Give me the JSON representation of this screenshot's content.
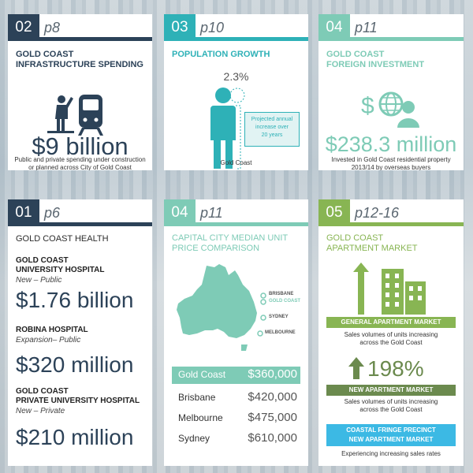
{
  "colors": {
    "navy": "#2c4258",
    "teal": "#2eb1b7",
    "mint": "#7ecbb6",
    "green": "#88b553",
    "cyan": "#3cb9e4",
    "olive": "#6b8a4e"
  },
  "infra": {
    "num": "02",
    "page": "p8",
    "title_line1": "GOLD COAST",
    "title_line2": "INFRASTRUCTURE SPENDING",
    "value": "$9 billion",
    "desc_line1": "Public and private spending under construction",
    "desc_line2": "or planned across City of Gold Coast",
    "icon": "person-train-icon"
  },
  "pop": {
    "num": "03",
    "page": "p10",
    "title": "POPULATION GROWTH",
    "percent": "2.3%",
    "note_line1": "Projected annual",
    "note_line2": "increase over",
    "note_line3": "20 years",
    "label": "Gold Coast",
    "icon": "person-figure-icon"
  },
  "foreign": {
    "num": "04",
    "page": "p11",
    "title_line1": "GOLD COAST",
    "title_line2": "FOREIGN INVESTMENT",
    "value": "$238.3 million",
    "desc_line1": "Invested in Gold Coast residential property",
    "desc_line2": "2013/14 by overseas buyers",
    "icon": "dollar-globe-person-icon"
  },
  "health": {
    "num": "01",
    "page": "p6",
    "title": "GOLD COAST HEALTH",
    "items": [
      {
        "name_line1": "GOLD COAST",
        "name_line2": "UNIVERSITY HOSPITAL",
        "note": "New – Public",
        "value": "$1.76 billion"
      },
      {
        "name_line1": "ROBINA HOSPITAL",
        "name_line2": "",
        "note": "Expansion– Public",
        "value": "$320 million"
      },
      {
        "name_line1": "GOLD COAST",
        "name_line2": "PRIVATE UNIVERSITY HOSPITAL",
        "note": "New – Private",
        "value": "$210 million"
      }
    ]
  },
  "prices": {
    "num": "04",
    "page": "p11",
    "title_line1": "CAPITAL CITY MEDIAN UNIT",
    "title_line2": "PRICE COMPARISON",
    "map_labels": {
      "brisbane": "BRISBANE",
      "goldcoast": "GOLD COAST",
      "sydney": "SYDNEY",
      "melbourne": "MELBOURNE"
    },
    "rows": [
      {
        "city": "Gold Coast",
        "price": "$360,000"
      },
      {
        "city": "Brisbane",
        "price": "$420,000"
      },
      {
        "city": "Melbourne",
        "price": "$475,000"
      },
      {
        "city": "Sydney",
        "price": "$610,000"
      }
    ]
  },
  "apartments": {
    "num": "05",
    "page": "p12-16",
    "title_line1": "GOLD COAST",
    "title_line2": "APARTMENT MARKET",
    "general_label": "GENERAL APARTMENT MARKET",
    "general_desc_line1": "Sales volumes of units increasing",
    "general_desc_line2": "across the Gold Coast",
    "new_percent": "198%",
    "new_label": "NEW APARTMENT MARKET",
    "new_desc_line1": "Sales volumes of units increasing",
    "new_desc_line2": "across the Gold Coast",
    "coastal_line1": "COASTAL FRINGE PRECINCT",
    "coastal_line2": "NEW APARTMENT MARKET",
    "coastal_desc": "Experiencing increasing sales rates"
  }
}
